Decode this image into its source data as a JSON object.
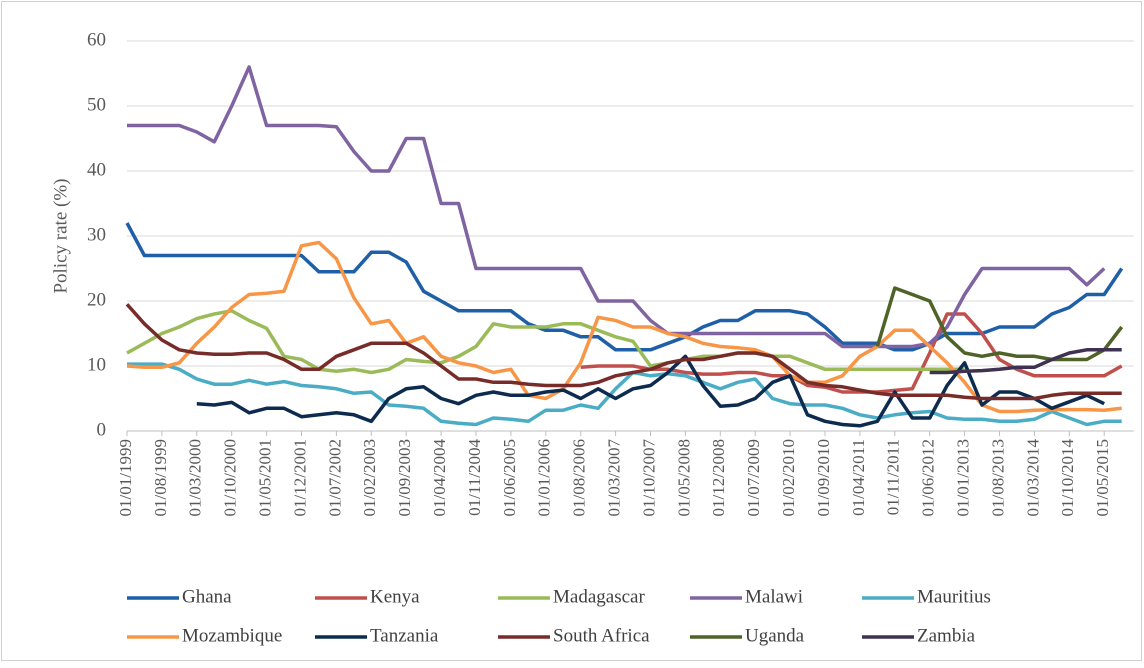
{
  "chart_data": {
    "type": "line",
    "ylabel": "Policy rate (%)",
    "categories": [
      "01/01/1999",
      null,
      "01/08/1999",
      null,
      "01/03/2000",
      null,
      "01/10/2000",
      null,
      "01/05/2001",
      null,
      "01/12/2001",
      null,
      "01/07/2002",
      null,
      "01/02/2003",
      null,
      "01/09/2003",
      null,
      "01/04/2004",
      null,
      "01/11/2004",
      null,
      "01/06/2005",
      null,
      "01/01/2006",
      null,
      "01/08/2006",
      null,
      "01/03/2007",
      null,
      "01/10/2007",
      null,
      "01/05/2008",
      null,
      "01/12/2008",
      null,
      "01/07/2009",
      null,
      "01/02/2010",
      null,
      "01/09/2010",
      null,
      "01/04/2011",
      null,
      "01/11/2011",
      null,
      "01/06/2012",
      null,
      "01/01/2013",
      null,
      "01/08/2013",
      null,
      "01/03/2014",
      null,
      "01/10/2014",
      null,
      "01/05/2015",
      null
    ],
    "ylim": [
      0,
      60
    ],
    "yticks": [
      0,
      10,
      20,
      30,
      40,
      50,
      60
    ],
    "grid": true,
    "series": [
      {
        "name": "Ghana",
        "color": "#1f5fa8",
        "values": [
          32,
          27,
          27,
          27,
          27,
          27,
          27,
          27,
          27,
          27,
          27,
          24.5,
          24.5,
          24.5,
          27.5,
          27.5,
          26,
          21.5,
          20,
          18.5,
          18.5,
          18.5,
          18.5,
          16.5,
          15.5,
          15.5,
          14.5,
          14.5,
          12.5,
          12.5,
          12.5,
          13.5,
          14.5,
          16,
          17,
          17,
          18.5,
          18.5,
          18.5,
          18,
          16,
          13.5,
          13.5,
          13.5,
          12.5,
          12.5,
          13.5,
          15,
          15,
          15,
          16,
          16,
          16,
          18,
          19,
          21,
          21,
          25
        ]
      },
      {
        "name": "Kenya",
        "color": "#c0504d",
        "values": [
          null,
          null,
          null,
          null,
          null,
          null,
          null,
          null,
          null,
          null,
          null,
          null,
          null,
          null,
          null,
          null,
          null,
          null,
          null,
          null,
          null,
          null,
          null,
          null,
          null,
          null,
          9.8,
          10,
          10,
          10,
          9.5,
          9.5,
          9,
          8.75,
          8.75,
          9,
          9,
          8.5,
          8.5,
          7,
          6.75,
          6,
          6,
          6,
          6.25,
          6.5,
          12,
          18,
          18,
          15,
          11,
          9.5,
          8.5,
          8.5,
          8.5,
          8.5,
          8.5,
          10
        ]
      },
      {
        "name": "Madagascar",
        "color": "#9bbb59",
        "values": [
          12,
          13.5,
          15,
          16,
          17.3,
          18,
          18.5,
          17,
          15.8,
          11.5,
          11,
          9.5,
          9.2,
          9.5,
          9,
          9.5,
          11,
          10.7,
          10.5,
          11.5,
          13,
          16.5,
          16,
          16,
          16,
          16.5,
          16.5,
          15.5,
          14.5,
          13.8,
          10,
          10.5,
          11,
          11.5,
          11.5,
          12,
          12,
          11.5,
          11.5,
          10.5,
          9.5,
          9.5,
          9.5,
          9.5,
          9.5,
          9.5,
          9.5,
          9.5,
          9.5,
          null,
          null,
          null,
          null,
          null,
          null,
          null,
          null,
          null
        ]
      },
      {
        "name": "Malawi",
        "color": "#8064a2",
        "values": [
          47,
          47,
          47,
          47,
          46,
          44.5,
          50,
          56,
          47,
          47,
          47,
          47,
          46.8,
          43,
          40,
          40,
          45,
          45,
          35,
          35,
          25,
          25,
          25,
          25,
          25,
          25,
          25,
          20,
          20,
          20,
          17,
          15,
          15,
          15,
          15,
          15,
          15,
          15,
          15,
          15,
          15,
          13,
          13,
          13,
          13,
          13,
          13.5,
          16,
          21,
          25,
          25,
          25,
          25,
          25,
          25,
          22.5,
          25,
          null
        ]
      },
      {
        "name": "Mauritius",
        "color": "#4bacc6",
        "values": [
          10.3,
          10.3,
          10.3,
          9.5,
          8,
          7.2,
          7.2,
          7.8,
          7.2,
          7.6,
          7,
          6.8,
          6.5,
          5.8,
          6,
          4,
          3.8,
          3.5,
          1.5,
          1.2,
          1,
          2,
          1.8,
          1.5,
          3.2,
          3.2,
          4,
          3.5,
          6.5,
          9,
          8.5,
          8.8,
          8.5,
          7.5,
          6.5,
          7.5,
          8,
          5,
          4.2,
          4,
          4,
          3.5,
          2.5,
          2,
          2.5,
          2.8,
          3,
          2,
          1.8,
          1.8,
          1.5,
          1.5,
          1.8,
          3,
          2,
          1,
          1.5,
          1.5
        ]
      },
      {
        "name": "Mozambique",
        "color": "#f79646",
        "values": [
          10,
          9.8,
          9.8,
          10.5,
          13.5,
          16,
          19,
          21,
          21.2,
          21.5,
          28.5,
          29,
          26.5,
          20.5,
          16.5,
          17,
          13.5,
          14.5,
          11.5,
          10.5,
          10,
          9,
          9.5,
          5.5,
          5,
          6.5,
          10.5,
          17.5,
          17,
          16,
          16,
          15,
          14.5,
          13.5,
          13,
          12.8,
          12.5,
          11.5,
          8.5,
          7.5,
          7.5,
          8.5,
          11.5,
          13,
          15.5,
          15.5,
          13,
          10.5,
          7.5,
          4,
          3,
          3,
          3.2,
          3.3,
          3.3,
          3.3,
          3.2,
          3.5
        ]
      },
      {
        "name": "Tanzania",
        "color": "#0d2b4f",
        "values": [
          null,
          null,
          null,
          null,
          4.2,
          4,
          4.4,
          2.8,
          3.5,
          3.5,
          2.2,
          2.5,
          2.8,
          2.5,
          1.5,
          5,
          6.5,
          6.8,
          5,
          4.2,
          5.5,
          6,
          5.5,
          5.5,
          6,
          6.3,
          5,
          6.5,
          5,
          6.5,
          7,
          9,
          11.5,
          7,
          3.8,
          4,
          5,
          7.5,
          8.5,
          2.5,
          1.5,
          1,
          0.8,
          1.5,
          6,
          2,
          2,
          7,
          10.5,
          4,
          6,
          6,
          5,
          3.5,
          4.5,
          5.5,
          4.2,
          null
        ]
      },
      {
        "name": "South Africa",
        "color": "#772c2a",
        "values": [
          19.5,
          16.5,
          14,
          12.5,
          12,
          11.8,
          11.8,
          12,
          12,
          11,
          9.5,
          9.5,
          11.5,
          12.5,
          13.5,
          13.5,
          13.5,
          12,
          10,
          8,
          8,
          7.5,
          7.5,
          7.2,
          7,
          7,
          7,
          7.5,
          8.5,
          9,
          9.5,
          10.5,
          11,
          11,
          11.5,
          12,
          12,
          11.5,
          9.5,
          7.5,
          7,
          6.8,
          6.3,
          5.8,
          5.5,
          5.5,
          5.5,
          5.5,
          5.2,
          5,
          5,
          5,
          5,
          5.5,
          5.8,
          5.8,
          5.8,
          5.8
        ]
      },
      {
        "name": "Uganda",
        "color": "#4f6228",
        "values": [
          null,
          null,
          null,
          null,
          null,
          null,
          null,
          null,
          null,
          null,
          null,
          null,
          null,
          null,
          null,
          null,
          null,
          null,
          null,
          null,
          null,
          null,
          null,
          null,
          null,
          null,
          null,
          null,
          null,
          null,
          null,
          null,
          null,
          null,
          null,
          null,
          null,
          null,
          null,
          null,
          null,
          null,
          null,
          13,
          22,
          21,
          20,
          14.5,
          12,
          11.5,
          12,
          11.5,
          11.5,
          11,
          11,
          11,
          12.5,
          16
        ]
      },
      {
        "name": "Zambia",
        "color": "#3f3151",
        "values": [
          null,
          null,
          null,
          null,
          null,
          null,
          null,
          null,
          null,
          null,
          null,
          null,
          null,
          null,
          null,
          null,
          null,
          null,
          null,
          null,
          null,
          null,
          null,
          null,
          null,
          null,
          null,
          null,
          null,
          null,
          null,
          null,
          null,
          null,
          null,
          null,
          null,
          null,
          null,
          null,
          null,
          null,
          null,
          null,
          null,
          null,
          9,
          9,
          9.2,
          9.3,
          9.5,
          9.8,
          9.8,
          11,
          12,
          12.5,
          12.5,
          12.5
        ]
      }
    ]
  }
}
